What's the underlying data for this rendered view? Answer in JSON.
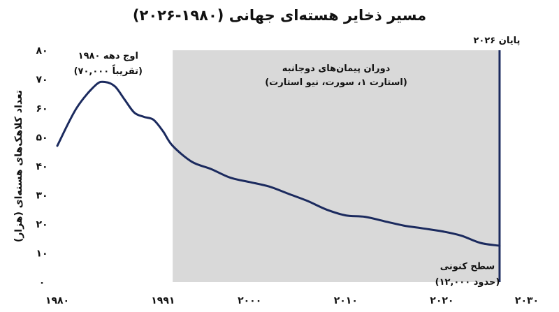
{
  "chart_data": {
    "type": "line",
    "title": "مسیر ذخایر هسته‌ای جهانی (۱۹۸۰-۲۰۲۶)",
    "xlabel": "",
    "ylabel": "تعداد کلاهک‌های هسته‌ای (هزار)",
    "xlim": [
      1980,
      2030
    ],
    "ylim": [
      0,
      80
    ],
    "x_ticks": [
      {
        "value": 1980,
        "label": "۱۹۸۰"
      },
      {
        "value": 1991,
        "label": "۱۹۹۱"
      },
      {
        "value": 2000,
        "label": "۲۰۰۰"
      },
      {
        "value": 2010,
        "label": "۲۰۱۰"
      },
      {
        "value": 2020,
        "label": "۲۰۲۰"
      },
      {
        "value": 2030,
        "label": "۲۰۳۰"
      }
    ],
    "y_ticks": [
      {
        "value": 0,
        "label": "۰"
      },
      {
        "value": 10,
        "label": "۱۰"
      },
      {
        "value": 20,
        "label": "۲۰"
      },
      {
        "value": 30,
        "label": "۳۰"
      },
      {
        "value": 40,
        "label": "۴۰"
      },
      {
        "value": 50,
        "label": "۵۰"
      },
      {
        "value": 60,
        "label": "۶۰"
      },
      {
        "value": 70,
        "label": "۷۰"
      },
      {
        "value": 80,
        "label": "۸۰"
      }
    ],
    "series": [
      {
        "name": "",
        "color": "#1b2a5e",
        "x": [
          1980,
          1982,
          1984,
          1985,
          1986,
          1987,
          1988,
          1989,
          1990,
          1991,
          1992,
          1994,
          1996,
          1998,
          2000,
          2002,
          2004,
          2006,
          2008,
          2010,
          2012,
          2014,
          2016,
          2018,
          2020,
          2022,
          2024,
          2026
        ],
        "y": [
          47,
          60,
          68,
          69,
          67.5,
          63,
          58.5,
          57,
          56,
          52,
          47,
          41.5,
          39,
          36,
          34.5,
          33,
          30.5,
          28,
          25,
          23,
          22.5,
          21,
          19.5,
          18.5,
          17.5,
          16,
          13.5,
          12.5
        ]
      }
    ],
    "shaded_region": {
      "x_start": 1992,
      "x_end": 2026,
      "color": "#d9d9d9",
      "label_line1": "دوران پیمان‌های دوجانبه",
      "label_line2": "(استارت ۱، سورت، نیو استارت)"
    },
    "vline": {
      "x": 2026,
      "color": "#1b2a5e",
      "label": "پایان ۲۰۲۶"
    },
    "annotations": [
      {
        "x": 1985,
        "line1": "اوج دهه ۱۹۸۰",
        "line2": "(تقریباً ۷۰,۰۰۰)"
      },
      {
        "x": 2026,
        "line1": "سطح کنونی",
        "line2": "(حدود ۱۲,۰۰۰)"
      }
    ],
    "grid": false
  }
}
